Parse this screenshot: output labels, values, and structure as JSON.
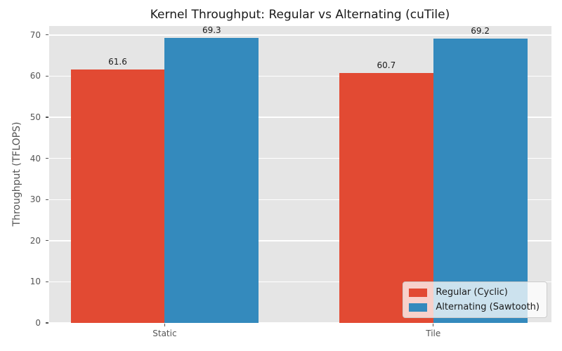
{
  "figure": {
    "title": "Kernel Throughput: Regular vs Alternating (cuTile)",
    "ylabel": "Throughput (TFLOPS)"
  },
  "chart_data": {
    "type": "bar",
    "title": "Kernel Throughput: Regular vs Alternating (cuTile)",
    "xlabel": "",
    "ylabel": "Throughput (TFLOPS)",
    "categories": [
      "Static",
      "Tile"
    ],
    "series": [
      {
        "name": "Regular (Cyclic)",
        "color": "#E24A33",
        "values": [
          61.6,
          60.7
        ]
      },
      {
        "name": "Alternating (Sawtooth)",
        "color": "#348ABD",
        "values": [
          69.3,
          69.2
        ]
      }
    ],
    "bar_value_labels": [
      [
        "61.6",
        "60.7"
      ],
      [
        "69.3",
        "69.2"
      ]
    ],
    "ylim": [
      0,
      72.2
    ],
    "yticks": [
      0,
      10,
      20,
      30,
      40,
      50,
      60,
      70
    ],
    "grid": "horizontal white gridlines on gray panel",
    "legend_position": "lower right",
    "style": {
      "plot_background": "#E5E5E5",
      "grid_color": "#FFFFFF",
      "tick_label_color": "#555555",
      "title_color": "#1A1A1A",
      "bar_label_color": "#1A1A1A",
      "series_red": "#E24A33",
      "series_blue": "#348ABD"
    }
  }
}
